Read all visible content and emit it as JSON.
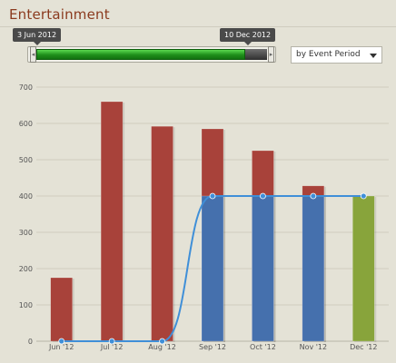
{
  "page": {
    "title": "Entertainment"
  },
  "range": {
    "start_label": "3 Jun 2012",
    "end_label": "10 Dec 2012"
  },
  "dropdown": {
    "selected": "by Event Period"
  },
  "chart_data": {
    "type": "bar",
    "categories": [
      "Jun '12",
      "Jul '12",
      "Aug '12",
      "Sep '12",
      "Oct '12",
      "Nov '12",
      "Dec '12"
    ],
    "ylim": [
      0,
      700
    ],
    "yticks": [
      0,
      100,
      200,
      300,
      400,
      500,
      600,
      700
    ],
    "grid": true,
    "series": [
      {
        "values": [
          175,
          660,
          592,
          585,
          525,
          428,
          0
        ],
        "color": "#a8423a"
      },
      {
        "values": [
          0,
          0,
          0,
          400,
          400,
          400,
          0
        ],
        "color": "#4570ad"
      },
      {
        "values": [
          0,
          0,
          0,
          0,
          0,
          0,
          400
        ],
        "color": "#88a43b"
      }
    ],
    "line": {
      "values": [
        0,
        0,
        0,
        400,
        400,
        400,
        400
      ],
      "color": "#3f8fd8"
    }
  }
}
